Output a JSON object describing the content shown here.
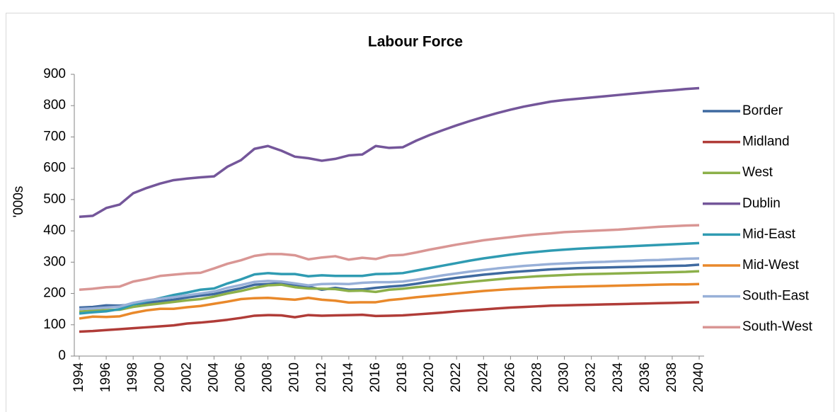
{
  "chart_data": {
    "type": "line",
    "title": "Labour Force",
    "y_label": "'000s",
    "x": [
      1994,
      1995,
      1996,
      1997,
      1998,
      1999,
      2000,
      2001,
      2002,
      2003,
      2004,
      2005,
      2006,
      2007,
      2008,
      2009,
      2010,
      2011,
      2012,
      2013,
      2014,
      2015,
      2016,
      2017,
      2018,
      2019,
      2020,
      2021,
      2022,
      2023,
      2024,
      2025,
      2026,
      2027,
      2028,
      2029,
      2030,
      2031,
      2032,
      2033,
      2034,
      2035,
      2036,
      2037,
      2038,
      2039,
      2040
    ],
    "xlim": [
      1994,
      2040
    ],
    "xticks": [
      1994,
      1996,
      1998,
      2000,
      2002,
      2004,
      2006,
      2008,
      2010,
      2012,
      2014,
      2016,
      2018,
      2020,
      2022,
      2024,
      2026,
      2028,
      2030,
      2032,
      2034,
      2036,
      2038,
      2040
    ],
    "ylim": [
      0,
      900
    ],
    "yticks": [
      0,
      100,
      200,
      300,
      400,
      500,
      600,
      700,
      800,
      900
    ],
    "grid": false,
    "legend": "right",
    "series": [
      {
        "name": "Border",
        "color": "#3f6aa0",
        "values": [
          155,
          157,
          162,
          161,
          165,
          170,
          175,
          180,
          187,
          193,
          198,
          208,
          217,
          228,
          230,
          232,
          228,
          222,
          212,
          218,
          212,
          213,
          218,
          222,
          225,
          231,
          238,
          244,
          250,
          255,
          260,
          264,
          268,
          271,
          274,
          277,
          279,
          281,
          282,
          283,
          284,
          285,
          286,
          287,
          288,
          289,
          292
        ]
      },
      {
        "name": "Midland",
        "color": "#b03c38",
        "values": [
          78,
          80,
          83,
          86,
          89,
          92,
          95,
          98,
          104,
          107,
          111,
          116,
          122,
          129,
          131,
          130,
          124,
          131,
          129,
          130,
          131,
          132,
          128,
          129,
          130,
          133,
          136,
          139,
          143,
          146,
          149,
          152,
          155,
          157,
          159,
          161,
          162,
          163,
          164,
          165,
          166,
          167,
          168,
          169,
          170,
          171,
          172
        ]
      },
      {
        "name": "West",
        "color": "#8cb04a",
        "values": [
          142,
          145,
          147,
          148,
          157,
          163,
          168,
          173,
          178,
          182,
          190,
          200,
          208,
          218,
          226,
          228,
          220,
          216,
          215,
          214,
          208,
          209,
          205,
          212,
          215,
          220,
          224,
          228,
          233,
          237,
          241,
          245,
          249,
          252,
          255,
          257,
          259,
          261,
          262,
          263,
          264,
          265,
          266,
          267,
          268,
          269,
          271
        ]
      },
      {
        "name": "Dublin",
        "color": "#74569a",
        "values": [
          445,
          448,
          473,
          484,
          520,
          537,
          551,
          562,
          567,
          571,
          574,
          605,
          626,
          662,
          671,
          656,
          637,
          632,
          624,
          630,
          641,
          644,
          671,
          665,
          667,
          688,
          706,
          722,
          737,
          751,
          764,
          776,
          787,
          797,
          805,
          813,
          818,
          822,
          826,
          830,
          834,
          838,
          842,
          846,
          849,
          853,
          856
        ]
      },
      {
        "name": "Mid-East",
        "color": "#2f9bb2",
        "values": [
          136,
          140,
          143,
          150,
          165,
          175,
          185,
          195,
          203,
          212,
          216,
          232,
          245,
          261,
          265,
          262,
          262,
          255,
          258,
          256,
          256,
          256,
          262,
          263,
          265,
          273,
          281,
          289,
          297,
          305,
          312,
          318,
          324,
          329,
          333,
          337,
          340,
          343,
          345,
          347,
          349,
          351,
          353,
          355,
          357,
          359,
          361
        ]
      },
      {
        "name": "Mid-West",
        "color": "#e9892b",
        "values": [
          120,
          126,
          125,
          127,
          138,
          146,
          151,
          151,
          156,
          160,
          167,
          174,
          182,
          185,
          186,
          183,
          180,
          186,
          180,
          177,
          171,
          172,
          172,
          179,
          183,
          188,
          192,
          196,
          200,
          204,
          208,
          211,
          214,
          216,
          218,
          220,
          221,
          222,
          223,
          224,
          225,
          226,
          227,
          228,
          229,
          229,
          230
        ]
      },
      {
        "name": "South-East",
        "color": "#98b0d8",
        "values": [
          150,
          152,
          155,
          158,
          170,
          178,
          183,
          188,
          194,
          200,
          206,
          218,
          227,
          237,
          240,
          238,
          232,
          226,
          230,
          231,
          230,
          234,
          236,
          236,
          238,
          244,
          251,
          258,
          264,
          270,
          275,
          280,
          284,
          288,
          291,
          294,
          296,
          298,
          300,
          301,
          303,
          304,
          306,
          307,
          309,
          311,
          312
        ]
      },
      {
        "name": "South-West",
        "color": "#d99694",
        "values": [
          212,
          215,
          220,
          222,
          238,
          246,
          256,
          260,
          264,
          266,
          280,
          295,
          306,
          320,
          326,
          326,
          322,
          309,
          315,
          319,
          308,
          314,
          310,
          321,
          323,
          331,
          340,
          348,
          356,
          363,
          370,
          375,
          380,
          385,
          389,
          392,
          396,
          398,
          400,
          402,
          404,
          407,
          410,
          413,
          415,
          417,
          418
        ]
      }
    ]
  }
}
